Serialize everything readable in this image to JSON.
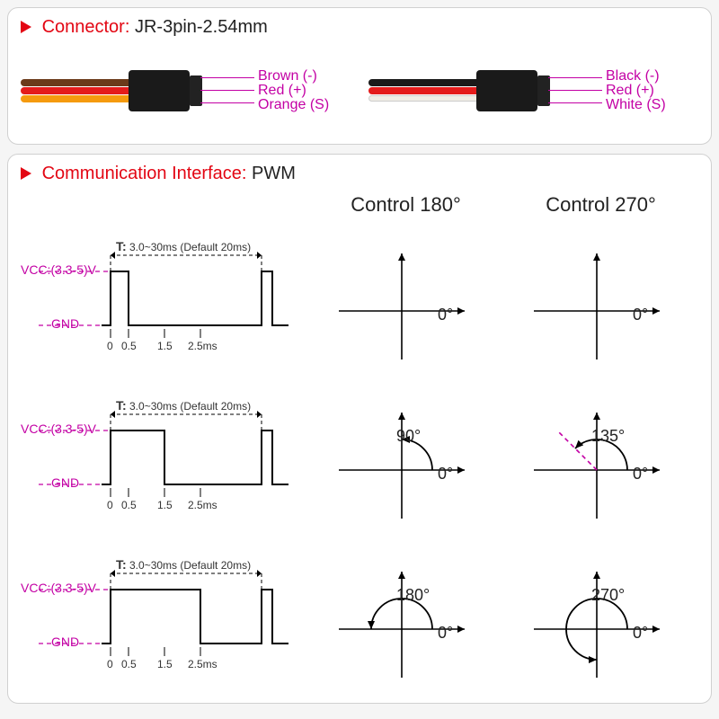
{
  "colors": {
    "red_accent": "#e30613",
    "magenta": "#c300a4",
    "black": "#222222",
    "wire_brown": "#6b3a1a",
    "wire_red": "#e41b1b",
    "wire_orange": "#f59a0e",
    "wire_black": "#1a1a1a",
    "wire_white": "#f0ede6"
  },
  "connector_panel": {
    "title_prefix": "Connector:",
    "title_value": "JR-3pin-2.54mm",
    "left": {
      "pins": [
        {
          "label": "Brown (-)",
          "wire_color": "#6b3a1a"
        },
        {
          "label": "Red (+)",
          "wire_color": "#e41b1b"
        },
        {
          "label": "Orange (S)",
          "wire_color": "#f59a0e"
        }
      ]
    },
    "right": {
      "pins": [
        {
          "label": "Black (-)",
          "wire_color": "#1a1a1a"
        },
        {
          "label": "Red (+)",
          "wire_color": "#e41b1b"
        },
        {
          "label": "White (S)",
          "wire_color": "#f0ede6"
        }
      ]
    }
  },
  "pwm_panel": {
    "title_prefix": "Communication Interface:",
    "title_value": "PWM",
    "vcc_label": "VCC:(3.3-5)V",
    "gnd_label": "GND",
    "period_t": "T:",
    "period_text": "3.0~30ms (Default 20ms)",
    "xticks": [
      "0",
      "0.5",
      "1.5",
      "2.5ms"
    ],
    "col180_header": "Control 180°",
    "col270_header": "Control 270°",
    "zero_deg": "0°",
    "rows": [
      {
        "pulse_end_ms": 0.5,
        "angle180": {
          "deg": 0,
          "label": ""
        },
        "angle270": {
          "deg": 0,
          "label": ""
        }
      },
      {
        "pulse_end_ms": 1.5,
        "angle180": {
          "deg": 90,
          "label": "90°"
        },
        "angle270": {
          "deg": 135,
          "label": "135°"
        }
      },
      {
        "pulse_end_ms": 2.5,
        "angle180": {
          "deg": 180,
          "label": "180°"
        },
        "angle270": {
          "deg": 270,
          "label": "270°"
        }
      }
    ],
    "waveform_style": {
      "stroke_width": 2,
      "stroke_color": "#000000",
      "dash_color": "#c300a4",
      "dash_pattern": "5,4"
    }
  }
}
